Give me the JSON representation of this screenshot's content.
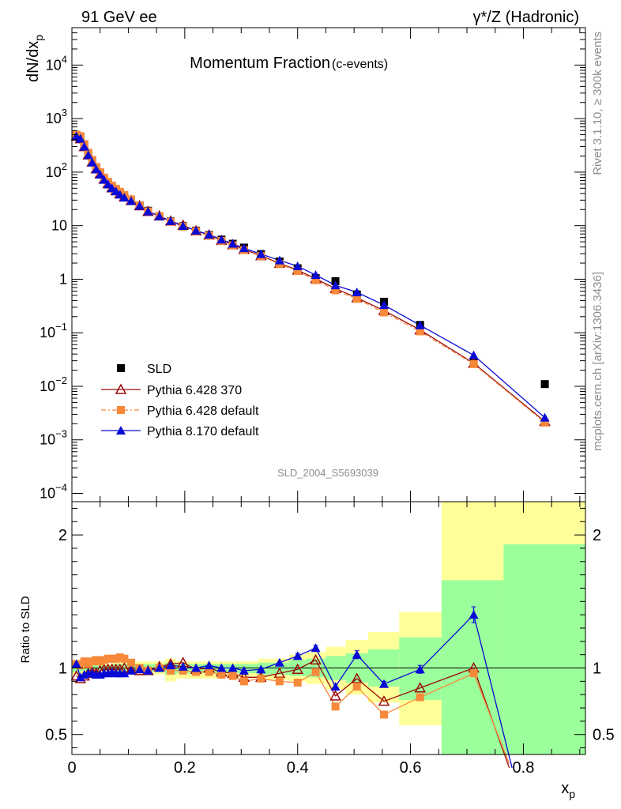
{
  "header": {
    "left": "91 GeV ee",
    "right": "γ*/Z (Hadronic)"
  },
  "side_labels": {
    "top": "Rivet 3.1.10, ≥ 300k events",
    "bottom": "mcplots.cern.ch [arXiv:1306.3436]"
  },
  "chart_data": [
    {
      "type": "scatter",
      "title": "Momentum Fraction",
      "subtitle": "(c-events)",
      "ylabel": "dN/dx",
      "ylabel_sub": "p",
      "yscale": "log",
      "ylim": [
        7e-05,
        50000
      ],
      "xlim": [
        0,
        0.91
      ],
      "ytick_labels": [
        "10−4",
        "10−3",
        "10−2",
        "10−1",
        "1",
        "10",
        "102",
        "103",
        "104"
      ],
      "analysis_tag": "SLD_2004_S5693039",
      "legend_position": "bottom-left",
      "series": [
        {
          "name": "SLD",
          "color": "#000000",
          "marker": "square",
          "x": [
            0.008,
            0.015,
            0.022,
            0.029,
            0.036,
            0.043,
            0.05,
            0.057,
            0.064,
            0.071,
            0.078,
            0.085,
            0.093,
            0.105,
            0.12,
            0.135,
            0.155,
            0.175,
            0.197,
            0.22,
            0.243,
            0.265,
            0.285,
            0.305,
            0.335,
            0.368,
            0.4,
            0.432,
            0.467,
            0.505,
            0.553,
            0.617,
            0.712,
            0.838
          ],
          "y": [
            500,
            460,
            320,
            220,
            160,
            120,
            95,
            75,
            62,
            52,
            46,
            40,
            35,
            30,
            24,
            19,
            15,
            12,
            9.8,
            8.1,
            6.7,
            5.5,
            4.6,
            3.9,
            2.95,
            2.15,
            1.6,
            1.05,
            0.92,
            0.52,
            0.38,
            0.14,
            0.028,
            0.011
          ]
        },
        {
          "name": "Pythia 6.428 370",
          "color": "#9b0b0b",
          "marker": "open-triangle",
          "x": [
            0.008,
            0.015,
            0.022,
            0.029,
            0.036,
            0.043,
            0.05,
            0.057,
            0.064,
            0.071,
            0.078,
            0.085,
            0.093,
            0.105,
            0.12,
            0.135,
            0.155,
            0.175,
            0.197,
            0.22,
            0.243,
            0.265,
            0.285,
            0.305,
            0.335,
            0.368,
            0.4,
            0.432,
            0.467,
            0.505,
            0.553,
            0.617,
            0.712,
            0.838
          ],
          "y": [
            470,
            420,
            300,
            210,
            155,
            115,
            93,
            74,
            61,
            51,
            45,
            39.5,
            34.5,
            29.5,
            23.5,
            18.5,
            15.2,
            12.2,
            10.2,
            8.0,
            6.7,
            5.3,
            4.4,
            3.6,
            2.75,
            1.98,
            1.48,
            1.02,
            0.67,
            0.45,
            0.26,
            0.113,
            0.027,
            0.0022
          ]
        },
        {
          "name": "Pythia 6.428 default",
          "color": "#f7893a",
          "marker": "square",
          "dash": "6,3,2,3",
          "x": [
            0.008,
            0.015,
            0.022,
            0.029,
            0.036,
            0.043,
            0.05,
            0.057,
            0.064,
            0.071,
            0.078,
            0.085,
            0.093,
            0.105,
            0.12,
            0.135,
            0.155,
            0.175,
            0.197,
            0.22,
            0.243,
            0.265,
            0.285,
            0.305,
            0.335,
            0.368,
            0.4,
            0.432,
            0.467,
            0.505,
            0.553,
            0.617,
            0.712,
            0.838
          ],
          "y": [
            500,
            470,
            335,
            230,
            170,
            125,
            100,
            79,
            66,
            56,
            49,
            43,
            37.5,
            31,
            24,
            18.5,
            15,
            11.8,
            9.6,
            7.9,
            6.5,
            5.2,
            4.3,
            3.5,
            2.7,
            1.92,
            1.42,
            0.96,
            0.62,
            0.43,
            0.24,
            0.106,
            0.026,
            0.0021
          ]
        },
        {
          "name": "Pythia 8.170 default",
          "color": "#0a0ad6",
          "marker": "triangle",
          "x": [
            0.008,
            0.015,
            0.022,
            0.029,
            0.036,
            0.043,
            0.05,
            0.057,
            0.064,
            0.071,
            0.078,
            0.085,
            0.093,
            0.105,
            0.12,
            0.135,
            0.155,
            0.175,
            0.197,
            0.22,
            0.243,
            0.265,
            0.285,
            0.305,
            0.335,
            0.368,
            0.4,
            0.432,
            0.467,
            0.505,
            0.553,
            0.617,
            0.712,
            0.838
          ],
          "y": [
            470,
            420,
            300,
            208,
            152,
            113,
            90,
            72,
            59,
            50,
            44,
            38,
            33.5,
            29,
            23.5,
            18.5,
            15,
            12.2,
            9.9,
            8.1,
            6.8,
            5.5,
            4.6,
            3.8,
            2.95,
            2.25,
            1.75,
            1.2,
            0.77,
            0.57,
            0.33,
            0.138,
            0.038,
            0.0026
          ]
        }
      ]
    },
    {
      "type": "line",
      "ylabel": "Ratio to SLD",
      "xlabel": "x",
      "xlabel_sub": "p",
      "ylim": [
        0.35,
        2.25
      ],
      "xlim": [
        0,
        0.91
      ],
      "xticks": [
        0,
        0.2,
        0.4,
        0.6,
        0.8
      ],
      "xtick_labels": [
        "0",
        "0.2",
        "0.4",
        "0.6",
        "0.8"
      ],
      "yticks": [
        0.5,
        1,
        2
      ],
      "ytick_labels": [
        "0.5",
        "1",
        "2"
      ],
      "reference_line": 1,
      "bands": {
        "edges": [
          0,
          0.017,
          0.027,
          0.04,
          0.07,
          0.1,
          0.165,
          0.185,
          0.27,
          0.33,
          0.385,
          0.415,
          0.45,
          0.485,
          0.525,
          0.58,
          0.655,
          0.765,
          0.91
        ],
        "yellow": [
          [
            0.95,
            1.06
          ],
          [
            0.96,
            1.05
          ],
          [
            0.97,
            1.04
          ],
          [
            0.97,
            1.03
          ],
          [
            0.96,
            1.05
          ],
          [
            0.95,
            1.05
          ],
          [
            0.9,
            1.07
          ],
          [
            0.92,
            1.05
          ],
          [
            0.93,
            1.05
          ],
          [
            0.91,
            1.07
          ],
          [
            0.9,
            1.1
          ],
          [
            0.88,
            1.12
          ],
          [
            0.84,
            1.16
          ],
          [
            0.8,
            1.21
          ],
          [
            0.74,
            1.27
          ],
          [
            0.57,
            1.42
          ],
          [
            0.35,
            2.25
          ],
          [
            0.35,
            2.25
          ]
        ],
        "green": [
          [
            0.97,
            1.04
          ],
          [
            0.98,
            1.03
          ],
          [
            0.98,
            1.02
          ],
          [
            0.98,
            1.02
          ],
          [
            0.97,
            1.03
          ],
          [
            0.97,
            1.03
          ],
          [
            0.95,
            1.04
          ],
          [
            0.96,
            1.03
          ],
          [
            0.96,
            1.03
          ],
          [
            0.95,
            1.04
          ],
          [
            0.94,
            1.06
          ],
          [
            0.93,
            1.07
          ],
          [
            0.91,
            1.09
          ],
          [
            0.89,
            1.11
          ],
          [
            0.86,
            1.14
          ],
          [
            0.76,
            1.23
          ],
          [
            0.35,
            1.66
          ],
          [
            0.35,
            1.93
          ]
        ]
      },
      "series": [
        {
          "name": "Pythia 6.428 370",
          "color": "#9b0b0b",
          "marker": "open-triangle",
          "x": [
            0.008,
            0.015,
            0.022,
            0.029,
            0.036,
            0.043,
            0.05,
            0.057,
            0.064,
            0.071,
            0.078,
            0.085,
            0.093,
            0.105,
            0.12,
            0.135,
            0.155,
            0.175,
            0.197,
            0.22,
            0.243,
            0.265,
            0.285,
            0.305,
            0.335,
            0.368,
            0.4,
            0.432,
            0.467,
            0.505,
            0.553,
            0.617,
            0.712,
            0.775
          ],
          "y": [
            0.94,
            0.92,
            0.94,
            0.96,
            0.97,
            0.96,
            0.98,
            0.99,
            0.99,
            0.99,
            0.99,
            0.99,
            1.0,
            0.99,
            0.98,
            0.98,
            1.01,
            1.03,
            1.04,
            0.99,
            1.0,
            0.97,
            0.96,
            0.93,
            0.93,
            0.96,
            0.99,
            1.06,
            0.79,
            0.92,
            0.75,
            0.85,
            1.0,
            0.25
          ]
        },
        {
          "name": "Pythia 6.428 default",
          "color": "#f7893a",
          "marker": "square",
          "x": [
            0.008,
            0.015,
            0.022,
            0.029,
            0.036,
            0.043,
            0.05,
            0.057,
            0.064,
            0.071,
            0.078,
            0.085,
            0.093,
            0.105,
            0.12,
            0.135,
            0.155,
            0.175,
            0.197,
            0.22,
            0.243,
            0.265,
            0.285,
            0.305,
            0.335,
            0.368,
            0.4,
            0.432,
            0.467,
            0.505,
            0.553,
            0.617,
            0.712,
            0.775
          ],
          "y": [
            1.03,
            1.02,
            1.05,
            1.03,
            1.05,
            1.06,
            1.05,
            1.06,
            1.07,
            1.07,
            1.07,
            1.08,
            1.07,
            1.04,
            1.0,
            0.98,
            1.0,
            0.98,
            0.98,
            0.97,
            0.97,
            0.95,
            0.94,
            0.9,
            0.92,
            0.9,
            0.89,
            0.97,
            0.71,
            0.86,
            0.65,
            0.78,
            0.96,
            0.28
          ]
        },
        {
          "name": "Pythia 8.170 default",
          "color": "#0a0ad6",
          "marker": "triangle",
          "x": [
            0.008,
            0.015,
            0.022,
            0.029,
            0.036,
            0.043,
            0.05,
            0.057,
            0.064,
            0.071,
            0.078,
            0.085,
            0.093,
            0.105,
            0.12,
            0.135,
            0.155,
            0.175,
            0.197,
            0.22,
            0.243,
            0.265,
            0.285,
            0.305,
            0.335,
            0.368,
            0.4,
            0.432,
            0.467,
            0.505,
            0.553,
            0.617,
            0.712,
            0.78
          ],
          "y": [
            1.03,
            0.93,
            0.95,
            0.96,
            0.96,
            0.95,
            0.95,
            0.96,
            0.96,
            0.97,
            0.96,
            0.96,
            0.96,
            0.98,
            0.99,
            0.98,
            1.0,
            1.02,
            1.01,
            1.0,
            1.02,
            1.0,
            1.0,
            0.98,
            0.99,
            1.04,
            1.09,
            1.15,
            0.86,
            1.1,
            0.88,
            0.99,
            1.4,
            0.25
          ],
          "err": [
            0,
            0,
            0,
            0,
            0,
            0,
            0,
            0,
            0,
            0,
            0,
            0,
            0,
            0,
            0,
            0,
            0,
            0,
            0,
            0,
            0,
            0,
            0,
            0,
            0,
            0,
            0.02,
            0.02,
            0.02,
            0.03,
            0.02,
            0.03,
            0.06,
            0
          ]
        }
      ]
    }
  ]
}
